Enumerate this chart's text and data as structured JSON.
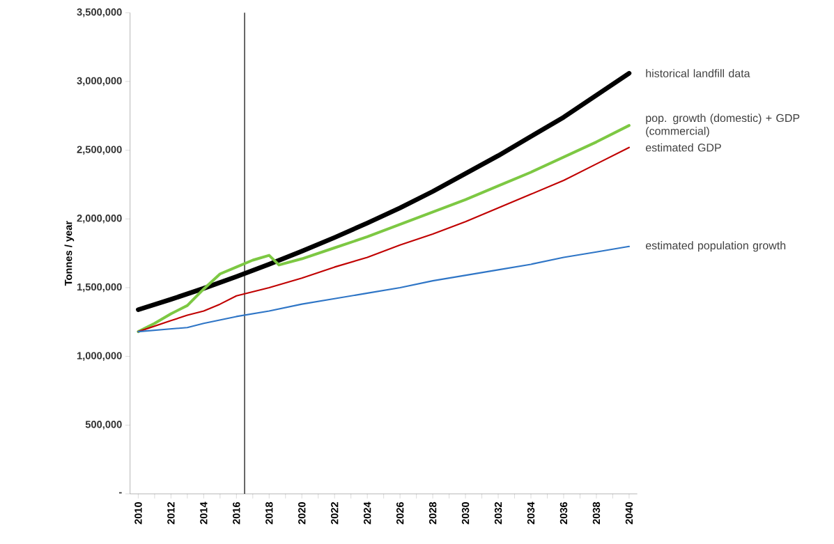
{
  "chart_data": {
    "type": "line",
    "ylabel": "Tonnes / year",
    "xlim": [
      2009.5,
      2040.5
    ],
    "xticks": [
      2010,
      {
        "value": 2011,
        "label": null
      },
      2012,
      {
        "value": 2013,
        "label": null
      },
      2014,
      {
        "value": 2015,
        "label": null
      },
      2016,
      {
        "value": 2017,
        "label": null
      },
      2018,
      {
        "value": 2019,
        "label": null
      },
      2020,
      {
        "value": 2021,
        "label": null
      },
      2022,
      {
        "value": 2023,
        "label": null
      },
      2024,
      {
        "value": 2025,
        "label": null
      },
      2026,
      {
        "value": 2027,
        "label": null
      },
      2028,
      {
        "value": 2029,
        "label": null
      },
      2030,
      {
        "value": 2031,
        "label": null
      },
      2032,
      {
        "value": 2033,
        "label": null
      },
      2034,
      {
        "value": 2035,
        "label": null
      },
      2036,
      {
        "value": 2037,
        "label": null
      },
      2038,
      {
        "value": 2039,
        "label": null
      },
      2040
    ],
    "ylim": [
      0,
      3500000
    ],
    "yticks": [
      {
        "value": 0,
        "label": "-"
      },
      {
        "value": 500000,
        "label": "500,000"
      },
      {
        "value": 1000000,
        "label": "1,000,000"
      },
      {
        "value": 1500000,
        "label": "1,500,000"
      },
      {
        "value": 2000000,
        "label": "2,000,000"
      },
      {
        "value": 2500000,
        "label": "2,500,000"
      },
      {
        "value": 3000000,
        "label": "3,000,000"
      },
      {
        "value": 3500000,
        "label": "3,500,000"
      }
    ],
    "ref_lines": [
      {
        "axis": "x",
        "value": 2016.5,
        "color": "#000000"
      }
    ],
    "series": [
      {
        "name": "historical landfill data",
        "color": "#000000",
        "x": [
          2010,
          2012,
          2014,
          2016,
          2018,
          2020,
          2022,
          2024,
          2026,
          2028,
          2030,
          2032,
          2034,
          2036,
          2038,
          2040
        ],
        "values": [
          1340000,
          1415000,
          1495000,
          1580000,
          1670000,
          1765000,
          1865000,
          1970000,
          2080000,
          2200000,
          2330000,
          2460000,
          2600000,
          2740000,
          2900000,
          3060000
        ]
      },
      {
        "name": "pop. growth (domestic) + GDP (commercial)",
        "color": "#7dc843",
        "x": [
          2010,
          2011,
          2012,
          2013,
          2014,
          2015,
          2016,
          2017,
          2018,
          2018.6,
          2020,
          2022,
          2024,
          2026,
          2028,
          2030,
          2032,
          2034,
          2036,
          2038,
          2040
        ],
        "values": [
          1180000,
          1240000,
          1310000,
          1370000,
          1490000,
          1600000,
          1650000,
          1700000,
          1735000,
          1665000,
          1710000,
          1790000,
          1870000,
          1960000,
          2050000,
          2140000,
          2240000,
          2340000,
          2450000,
          2560000,
          2680000
        ]
      },
      {
        "name": "estimated GDP",
        "color": "#c00000",
        "x": [
          2010,
          2012,
          2013,
          2014,
          2015,
          2016,
          2018,
          2020,
          2022,
          2024,
          2026,
          2028,
          2030,
          2032,
          2034,
          2036,
          2038,
          2040
        ],
        "values": [
          1180000,
          1260000,
          1300000,
          1330000,
          1380000,
          1440000,
          1500000,
          1570000,
          1650000,
          1720000,
          1810000,
          1890000,
          1980000,
          2080000,
          2180000,
          2280000,
          2400000,
          2520000
        ]
      },
      {
        "name": "estimated population growth",
        "color": "#2e75c6",
        "x": [
          2010,
          2013,
          2014,
          2016,
          2018,
          2020,
          2022,
          2024,
          2026,
          2028,
          2030,
          2032,
          2034,
          2036,
          2038,
          2040
        ],
        "values": [
          1180000,
          1210000,
          1240000,
          1290000,
          1330000,
          1380000,
          1420000,
          1460000,
          1500000,
          1550000,
          1590000,
          1630000,
          1670000,
          1720000,
          1760000,
          1800000
        ]
      }
    ]
  }
}
